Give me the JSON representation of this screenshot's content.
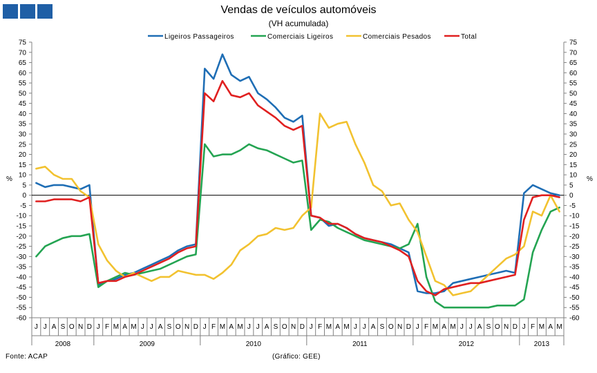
{
  "header": {
    "title": "Vendas de veículos automóveis",
    "subtitle": "(VH acumulada)"
  },
  "footer": {
    "source": "Fonte: ACAP",
    "credit": "(Gráfico: GEE)"
  },
  "chart_data": {
    "type": "line",
    "title": "Vendas de veículos automóveis",
    "subtitle": "(VH acumulada)",
    "ylabel_left": "%",
    "ylabel_right": "%",
    "ylim": [
      -60,
      75
    ],
    "ytick_step": 5,
    "grid": false,
    "legend": "top",
    "x": [
      "J",
      "J",
      "A",
      "S",
      "O",
      "N",
      "D",
      "J",
      "F",
      "M",
      "A",
      "M",
      "J",
      "J",
      "A",
      "S",
      "O",
      "N",
      "D",
      "J",
      "F",
      "M",
      "A",
      "M",
      "J",
      "J",
      "A",
      "S",
      "O",
      "N",
      "D",
      "J",
      "F",
      "M",
      "A",
      "M",
      "J",
      "J",
      "A",
      "S",
      "O",
      "N",
      "D",
      "J",
      "F",
      "M",
      "A",
      "M",
      "J",
      "J",
      "A",
      "S",
      "O",
      "N",
      "D",
      "J",
      "F",
      "M",
      "A",
      "M"
    ],
    "years": [
      {
        "label": "2008",
        "start": 0,
        "end": 6
      },
      {
        "label": "2009",
        "start": 7,
        "end": 18
      },
      {
        "label": "2010",
        "start": 19,
        "end": 30
      },
      {
        "label": "2011",
        "start": 31,
        "end": 42
      },
      {
        "label": "2012",
        "start": 43,
        "end": 54
      },
      {
        "label": "2013",
        "start": 55,
        "end": 59
      }
    ],
    "series": [
      {
        "name": "Ligeiros Passageiros",
        "color": "#1f6eb5",
        "values": [
          6,
          4,
          5,
          5,
          4,
          3,
          5,
          -44,
          -42,
          -41,
          -39,
          -38,
          -36,
          -34,
          -32,
          -30,
          -27,
          -25,
          -24,
          62,
          57,
          69,
          59,
          56,
          58,
          50,
          47,
          43,
          38,
          36,
          39,
          -10,
          -11,
          -15,
          -14,
          -16,
          -19,
          -21,
          -22,
          -23,
          -24,
          -26,
          -28,
          -47,
          -48,
          -48,
          -47,
          -43,
          -42,
          -41,
          -40,
          -39,
          -38,
          -37,
          -38,
          1,
          5,
          3,
          1,
          0
        ]
      },
      {
        "name": "Comerciais Ligeiros",
        "color": "#24a452",
        "values": [
          -30,
          -25,
          -23,
          -21,
          -20,
          -20,
          -19,
          -45,
          -42,
          -40,
          -38,
          -39,
          -38,
          -37,
          -36,
          -34,
          -32,
          -30,
          -29,
          25,
          19,
          20,
          20,
          22,
          25,
          23,
          22,
          20,
          18,
          16,
          17,
          -17,
          -12,
          -13,
          -16,
          -18,
          -20,
          -22,
          -23,
          -24,
          -25,
          -26,
          -24,
          -14,
          -40,
          -52,
          -55,
          -55,
          -55,
          -55,
          -55,
          -55,
          -54,
          -54,
          -54,
          -51,
          -28,
          -17,
          -8,
          -6
        ]
      },
      {
        "name": "Comerciais Pesados",
        "color": "#f2c230",
        "values": [
          13,
          14,
          10,
          8,
          8,
          2,
          -1,
          -24,
          -32,
          -37,
          -40,
          -38,
          -40,
          -42,
          -40,
          -40,
          -37,
          -38,
          -39,
          -39,
          -41,
          -38,
          -34,
          -27,
          -24,
          -20,
          -19,
          -16,
          -17,
          -16,
          -10,
          -6,
          40,
          33,
          35,
          36,
          25,
          16,
          5,
          2,
          -5,
          -4,
          -12,
          -18,
          -30,
          -42,
          -44,
          -49,
          -48,
          -47,
          -43,
          -39,
          -35,
          -31,
          -29,
          -25,
          -8,
          -10,
          0,
          -8
        ]
      },
      {
        "name": "Total",
        "color": "#e02020",
        "values": [
          -3,
          -3,
          -2,
          -2,
          -2,
          -3,
          -1,
          -43,
          -42,
          -42,
          -40,
          -39,
          -37,
          -35,
          -33,
          -31,
          -28,
          -26,
          -25,
          50,
          46,
          56,
          49,
          48,
          50,
          44,
          41,
          38,
          34,
          32,
          34,
          -10,
          -11,
          -14,
          -14,
          -16,
          -19,
          -21,
          -22,
          -23,
          -25,
          -27,
          -30,
          -42,
          -47,
          -49,
          -46,
          -45,
          -44,
          -43,
          -43,
          -42,
          -41,
          -40,
          -39,
          -12,
          -1,
          0,
          0,
          -1
        ]
      }
    ]
  }
}
